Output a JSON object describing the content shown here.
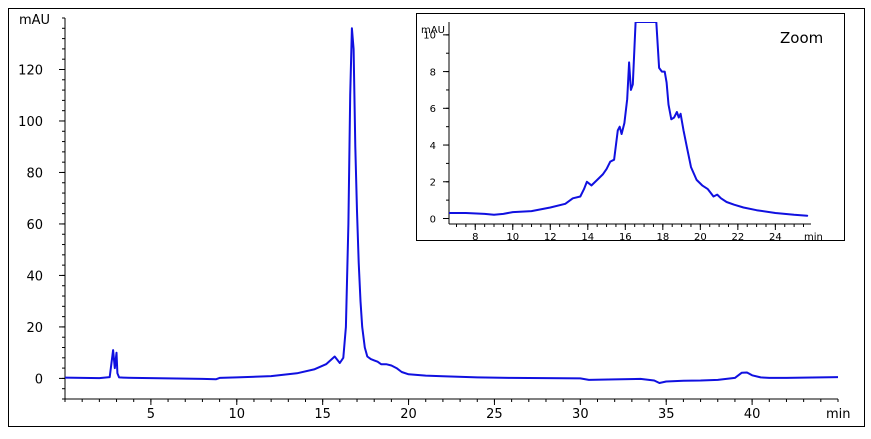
{
  "chart_data": [
    {
      "type": "line",
      "xlabel": "min",
      "ylabel": "mAU",
      "xlim": [
        0,
        45
      ],
      "ylim": [
        -8,
        140
      ],
      "xticks": [
        5,
        10,
        15,
        20,
        25,
        30,
        35,
        40
      ],
      "xtick_labels": [
        "5",
        "10",
        "15",
        "20",
        "25",
        "30",
        "35",
        "40"
      ],
      "yticks": [
        0,
        20,
        40,
        60,
        80,
        100,
        120
      ],
      "ytick_labels": [
        "0",
        "20",
        "40",
        "60",
        "80",
        "100",
        "120"
      ],
      "line_color": "#1010e0",
      "series": [
        {
          "x": [
            0,
            1,
            2,
            2.6,
            2.8,
            2.9,
            3.0,
            3.05,
            3.15,
            3.4,
            4,
            6,
            8,
            8.8,
            9.0,
            10,
            12,
            13.5,
            14.5,
            15.2,
            15.7,
            16.0,
            16.2,
            16.35,
            16.5,
            16.6,
            16.7,
            16.8,
            16.9,
            17.0,
            17.1,
            17.2,
            17.3,
            17.45,
            17.6,
            17.8,
            18.0,
            18.2,
            18.4,
            18.7,
            19.0,
            19.3,
            19.6,
            20.0,
            21,
            22,
            24,
            26,
            28,
            30,
            30.5,
            32,
            33.5,
            34.3,
            34.6,
            35,
            36,
            37,
            38,
            39.0,
            39.4,
            39.7,
            40.0,
            40.5,
            41,
            42,
            43,
            44,
            45
          ],
          "y": [
            0.3,
            0.2,
            0.1,
            0.5,
            11.0,
            4.0,
            10.0,
            2.0,
            0.4,
            0.3,
            0.2,
            0.0,
            -0.2,
            -0.3,
            0.2,
            0.4,
            0.9,
            2.0,
            3.5,
            5.5,
            8.5,
            6.0,
            8.0,
            20.0,
            60.0,
            110.0,
            136.0,
            128.0,
            90.0,
            65.0,
            45.0,
            30.0,
            20.0,
            12.0,
            8.5,
            7.5,
            7.0,
            6.5,
            5.5,
            5.5,
            5.0,
            4.0,
            2.5,
            1.6,
            1.1,
            0.8,
            0.4,
            0.2,
            0.1,
            0.0,
            -0.6,
            -0.4,
            -0.2,
            -0.8,
            -1.8,
            -1.2,
            -0.9,
            -0.8,
            -0.6,
            0.2,
            2.2,
            2.3,
            1.2,
            0.4,
            0.2,
            0.2,
            0.3,
            0.4,
            0.5
          ]
        }
      ]
    },
    {
      "type": "line",
      "title": "Zoom",
      "xlabel": "min",
      "ylabel": "mAU",
      "xlim": [
        6.6,
        25.9
      ],
      "ylim": [
        -0.3,
        10.7
      ],
      "xticks": [
        8,
        10,
        12,
        14,
        16,
        18,
        20,
        22,
        24
      ],
      "xtick_labels": [
        "8",
        "10",
        "12",
        "14",
        "16",
        "18",
        "20",
        "22",
        "24"
      ],
      "yticks": [
        0,
        2,
        4,
        6,
        8,
        10
      ],
      "ytick_labels": [
        "0",
        "2",
        "4",
        "6",
        "8",
        "10"
      ],
      "line_color": "#1010e0",
      "series": [
        {
          "x": [
            6.6,
            7.5,
            8.5,
            9.0,
            9.5,
            10.0,
            11.0,
            12.0,
            12.8,
            13.2,
            13.6,
            13.8,
            13.95,
            14.2,
            14.5,
            14.8,
            15.0,
            15.2,
            15.4,
            15.6,
            15.7,
            15.8,
            15.95,
            16.1,
            16.2,
            16.3,
            16.4,
            16.55,
            16.65,
            16.75,
            17.5,
            17.65,
            17.8,
            17.95,
            18.1,
            18.2,
            18.3,
            18.45,
            18.6,
            18.75,
            18.85,
            18.95,
            19.1,
            19.3,
            19.5,
            19.8,
            20.1,
            20.4,
            20.7,
            20.9,
            21.1,
            21.4,
            21.8,
            22.3,
            23.0,
            24.0,
            25.0,
            25.7
          ],
          "y": [
            0.3,
            0.3,
            0.25,
            0.2,
            0.25,
            0.35,
            0.4,
            0.6,
            0.8,
            1.1,
            1.2,
            1.6,
            2.0,
            1.8,
            2.1,
            2.4,
            2.7,
            3.1,
            3.2,
            4.8,
            5.0,
            4.6,
            5.2,
            6.5,
            8.5,
            7.0,
            7.3,
            10.7,
            10.7,
            10.7,
            10.7,
            10.7,
            8.2,
            8.0,
            8.0,
            7.4,
            6.2,
            5.4,
            5.5,
            5.8,
            5.5,
            5.7,
            4.8,
            3.8,
            2.8,
            2.1,
            1.8,
            1.6,
            1.2,
            1.3,
            1.1,
            0.9,
            0.75,
            0.6,
            0.45,
            0.3,
            0.2,
            0.15
          ]
        }
      ]
    }
  ]
}
